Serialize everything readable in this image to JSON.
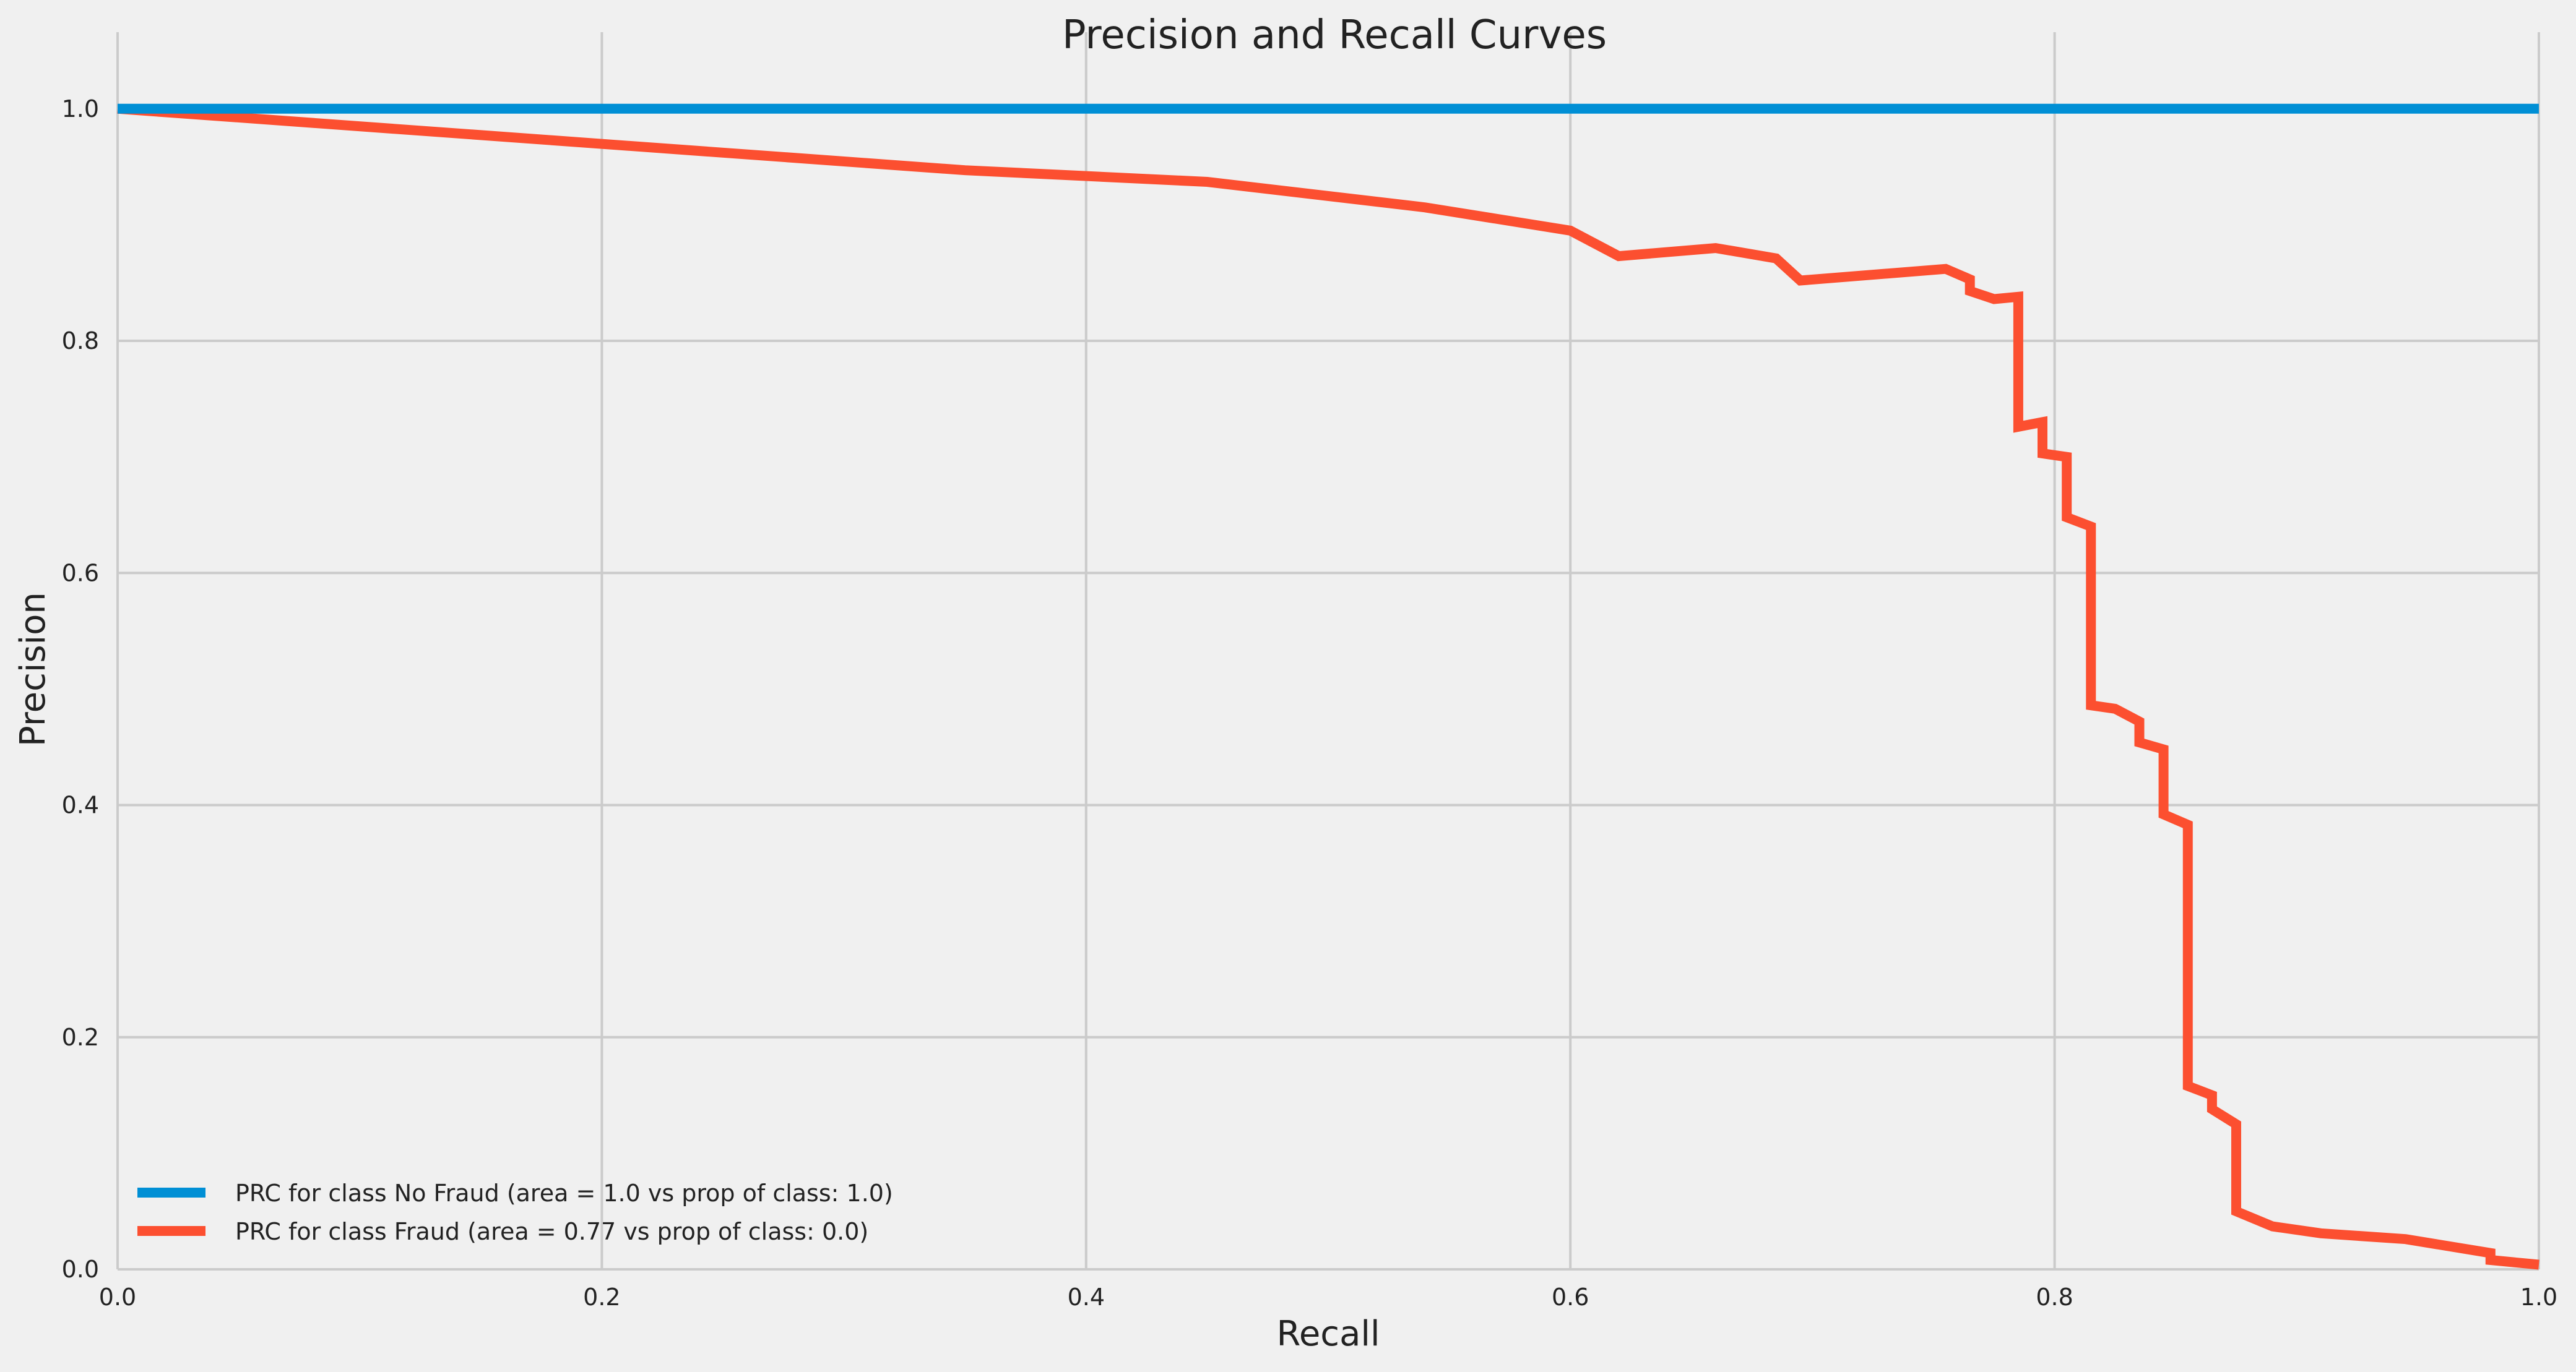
{
  "chart_data": {
    "type": "line",
    "title": "Precision and Recall Curves",
    "xlabel": "Recall",
    "ylabel": "Precision",
    "xlim": [
      0,
      1
    ],
    "ylim": [
      0,
      1.05
    ],
    "xticks": [
      0.0,
      0.2,
      0.4,
      0.6,
      0.8,
      1.0
    ],
    "xtick_labels": [
      "0.0",
      "0.2",
      "0.4",
      "0.6",
      "0.8",
      "1.0"
    ],
    "yticks": [
      0.0,
      0.2,
      0.4,
      0.6,
      0.8,
      1.0
    ],
    "ytick_labels": [
      "0.0",
      "0.2",
      "0.4",
      "0.6",
      "0.8",
      "1.0"
    ],
    "grid": true,
    "legend_position": "lower-left",
    "background": "#f0f0f0",
    "series": [
      {
        "name": "PRC for class No Fraud (area = 1.0 vs prop of class: 1.0)",
        "color": "#008fd5",
        "x": [
          0.0,
          1.0
        ],
        "y": [
          1.0,
          1.0
        ]
      },
      {
        "name": "PRC for class Fraud (area = 0.77 vs prop of class: 0.0)",
        "color": "#fc4f30",
        "x": [
          0.0,
          0.35,
          0.45,
          0.54,
          0.6,
          0.62,
          0.66,
          0.685,
          0.695,
          0.755,
          0.765,
          0.765,
          0.775,
          0.785,
          0.785,
          0.795,
          0.795,
          0.805,
          0.805,
          0.815,
          0.815,
          0.825,
          0.835,
          0.835,
          0.845,
          0.845,
          0.855,
          0.855,
          0.865,
          0.865,
          0.875,
          0.875,
          0.89,
          0.91,
          0.945,
          0.98,
          0.98,
          1.0
        ],
        "y": [
          1.0,
          0.947,
          0.937,
          0.915,
          0.895,
          0.873,
          0.88,
          0.871,
          0.852,
          0.862,
          0.853,
          0.843,
          0.836,
          0.838,
          0.726,
          0.73,
          0.703,
          0.7,
          0.648,
          0.64,
          0.486,
          0.483,
          0.472,
          0.454,
          0.448,
          0.392,
          0.383,
          0.158,
          0.15,
          0.138,
          0.125,
          0.05,
          0.037,
          0.031,
          0.026,
          0.014,
          0.008,
          0.004
        ]
      }
    ]
  }
}
